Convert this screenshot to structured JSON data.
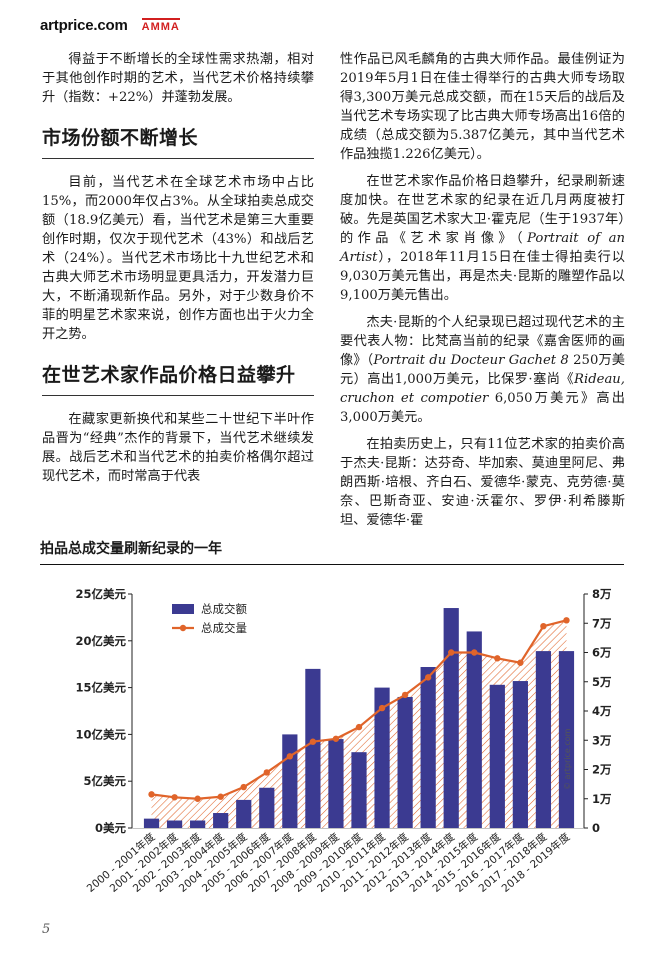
{
  "header": {
    "logo_text": "artprice.com",
    "partner_logo": "AMMA"
  },
  "left_column": {
    "intro_paragraph": "得益于不断增长的全球性需求热潮，相对于其他创作时期的艺术，当代艺术价格持续攀升（指数：+22%）并蓬勃发展。",
    "heading1": "市场份额不断增长",
    "para1": "目前，当代艺术在全球艺术市场中占比15%，而2000年仅占3%。从全球拍卖总成交额（18.9亿美元）看，当代艺术是第三大重要创作时期，仅次于现代艺术（43%）和战后艺术（24%）。当代艺术市场比十九世纪艺术和古典大师艺术市场明显更具活力，开发潜力巨大，不断涌现新作品。另外，对于少数身价不菲的明星艺术家来说，创作方面也出于火力全开之势。",
    "heading2": "在世艺术家作品价格日益攀升",
    "para2": "在藏家更新换代和某些二十世纪下半叶作品晋为“经典”杰作的背景下，当代艺术继续发展。战后艺术和当代艺术的拍卖价格偶尔超过现代艺术，而时常高于代表"
  },
  "right_column": {
    "para1": "性作品已风毛麟角的古典大师作品。最佳例证为2019年5月1日在佳士得举行的古典大师专场取得3,300万美元总成交额，而在15天后的战后及当代艺术专场实现了比古典大师专场高出16倍的成绩（总成交额为5.387亿美元，其中当代艺术作品独揽1.226亿美元）。",
    "para2_a": "在世艺术家作品价格日趋攀升，纪录刷新速度加快。在世艺术家的纪录在近几月两度被打破。先是英国艺术家大卫·霍克尼（生于1937年）的作品《艺术家肖像》（",
    "para2_italic": "Portrait of an Artist",
    "para2_b": "），2018年11月15日在佳士得拍卖行以9,030万美元售出，再是杰夫·昆斯的雕塑作品以9,100万美元售出。",
    "para3_a": "杰夫·昆斯的个人纪录现已超过现代艺术的主要代表人物：比梵高当前的纪录《嘉舍医师的画像》（",
    "para3_italic1": "Portrait du Docteur Gachet 8",
    "para3_b": " 250万美元）高出1,000万美元，比保罗·塞尚《",
    "para3_italic2": "Rideau, cruchon et compotier",
    "para3_c": " 6,050万美元》高出3,000万美元。",
    "para4": "在拍卖历史上，只有11位艺术家的拍卖价高于杰夫·昆斯：达芬奇、毕加索、莫迪里阿尼、弗朗西斯·培根、齐白石、爱德华·蒙克、克劳德·莫奈、巴斯奇亚、安迪·沃霍尔、罗伊·利希滕斯坦、爱德华·霍"
  },
  "chart_title": "拍品总成交量刷新纪录的一年",
  "watermark": "© artprice.com",
  "page_number": "5",
  "colors": {
    "bar": "#3b3a91",
    "line": "#e0642a",
    "hatch": "#e0642a"
  },
  "chart_data": {
    "type": "bar",
    "title": "拍品总成交量刷新纪录的一年",
    "categories": [
      "2000 - 2001年度",
      "2001 - 2002年度",
      "2002 - 2003年度",
      "2003 - 2004年度",
      "2004 - 2005年度",
      "2005 - 2006年度",
      "2006 - 2007年度",
      "2007 - 2008年度",
      "2008 - 2009年度",
      "2009 - 2010年度",
      "2010 - 2011年度",
      "2011 - 2012年度",
      "2012 - 2013年度",
      "2013 - 2014年度",
      "2014 - 2015年度",
      "2015 - 2016年度",
      "2016 - 2017年度",
      "2017 - 2018年度",
      "2018 - 2019年度"
    ],
    "series": [
      {
        "name": "总成交额",
        "type": "bar",
        "axis": "left",
        "values": [
          1.0,
          0.8,
          0.8,
          1.6,
          3.0,
          4.3,
          10.0,
          17.0,
          9.5,
          8.1,
          15.0,
          14.0,
          17.2,
          23.5,
          21.0,
          15.3,
          15.7,
          18.9,
          18.9
        ]
      },
      {
        "name": "总成交量",
        "type": "line",
        "axis": "right",
        "values": [
          11500,
          10500,
          10000,
          10700,
          14000,
          19000,
          24500,
          29500,
          30500,
          34500,
          41000,
          45500,
          51500,
          60000,
          60000,
          58000,
          56500,
          69000,
          71000
        ]
      }
    ],
    "y_left": {
      "ticks": [
        "0美元",
        "5亿美元",
        "10亿美元",
        "15亿美元",
        "20亿美元",
        "25亿美元"
      ],
      "range": [
        0,
        25
      ]
    },
    "y_right": {
      "ticks": [
        "0",
        "1万",
        "2万",
        "3万",
        "4万",
        "5万",
        "6万",
        "7万",
        "8万"
      ],
      "range": [
        0,
        80000
      ]
    },
    "legend": "top-left",
    "grid": false
  }
}
